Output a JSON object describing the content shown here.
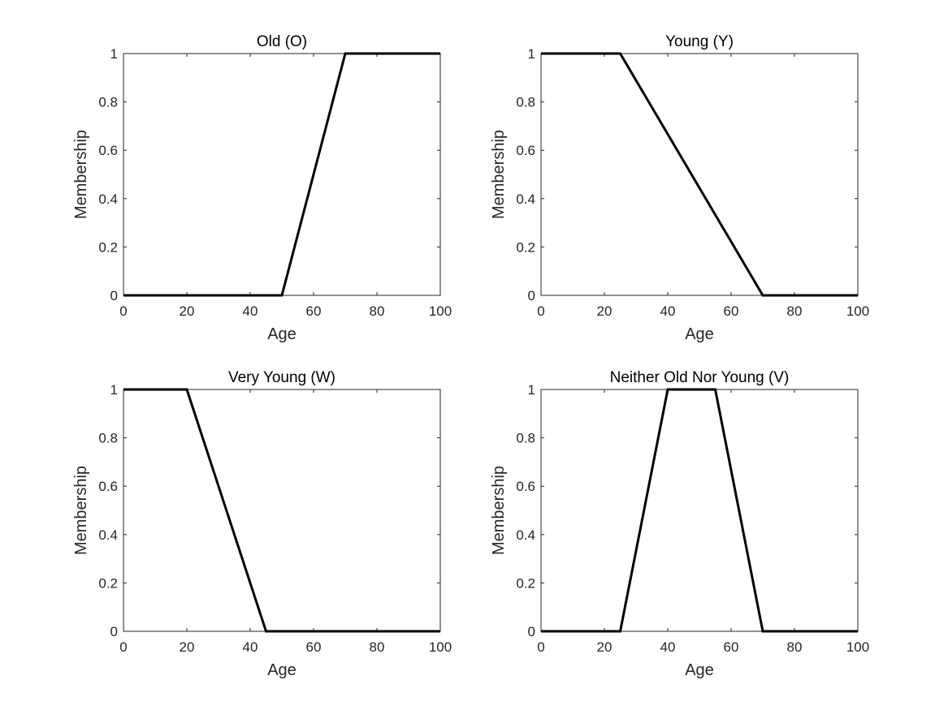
{
  "chart_data": [
    {
      "type": "line",
      "title": "Old (O)",
      "xlabel": "Age",
      "ylabel": "Membership",
      "xlim": [
        0,
        100
      ],
      "ylim": [
        0,
        1
      ],
      "xticks": [
        "0",
        "20",
        "40",
        "60",
        "80",
        "100"
      ],
      "yticks": [
        "0",
        "0.2",
        "0.4",
        "0.6",
        "0.8",
        "1"
      ],
      "grid": false,
      "series": [
        {
          "x": [
            0,
            50,
            70,
            100
          ],
          "y": [
            0,
            0,
            1,
            1
          ],
          "color": "#000000"
        }
      ]
    },
    {
      "type": "line",
      "title": "Young (Y)",
      "xlabel": "Age",
      "ylabel": "Membership",
      "xlim": [
        0,
        100
      ],
      "ylim": [
        0,
        1
      ],
      "xticks": [
        "0",
        "20",
        "40",
        "60",
        "80",
        "100"
      ],
      "yticks": [
        "0",
        "0.2",
        "0.4",
        "0.6",
        "0.8",
        "1"
      ],
      "grid": false,
      "series": [
        {
          "x": [
            0,
            25,
            70,
            100
          ],
          "y": [
            1,
            1,
            0,
            0
          ],
          "color": "#000000"
        }
      ]
    },
    {
      "type": "line",
      "title": "Very Young (W)",
      "xlabel": "Age",
      "ylabel": "Membership",
      "xlim": [
        0,
        100
      ],
      "ylim": [
        0,
        1
      ],
      "xticks": [
        "0",
        "20",
        "40",
        "60",
        "80",
        "100"
      ],
      "yticks": [
        "0",
        "0.2",
        "0.4",
        "0.6",
        "0.8",
        "1"
      ],
      "grid": false,
      "series": [
        {
          "x": [
            0,
            20,
            45,
            100
          ],
          "y": [
            1,
            1,
            0,
            0
          ],
          "color": "#000000"
        }
      ]
    },
    {
      "type": "line",
      "title": "Neither Old Nor Young (V)",
      "xlabel": "Age",
      "ylabel": "Membership",
      "xlim": [
        0,
        100
      ],
      "ylim": [
        0,
        1
      ],
      "xticks": [
        "0",
        "20",
        "40",
        "60",
        "80",
        "100"
      ],
      "yticks": [
        "0",
        "0.2",
        "0.4",
        "0.6",
        "0.8",
        "1"
      ],
      "grid": false,
      "series": [
        {
          "x": [
            0,
            25,
            40,
            55,
            70,
            100
          ],
          "y": [
            0,
            0,
            1,
            1,
            0,
            0
          ],
          "color": "#000000"
        }
      ]
    }
  ]
}
